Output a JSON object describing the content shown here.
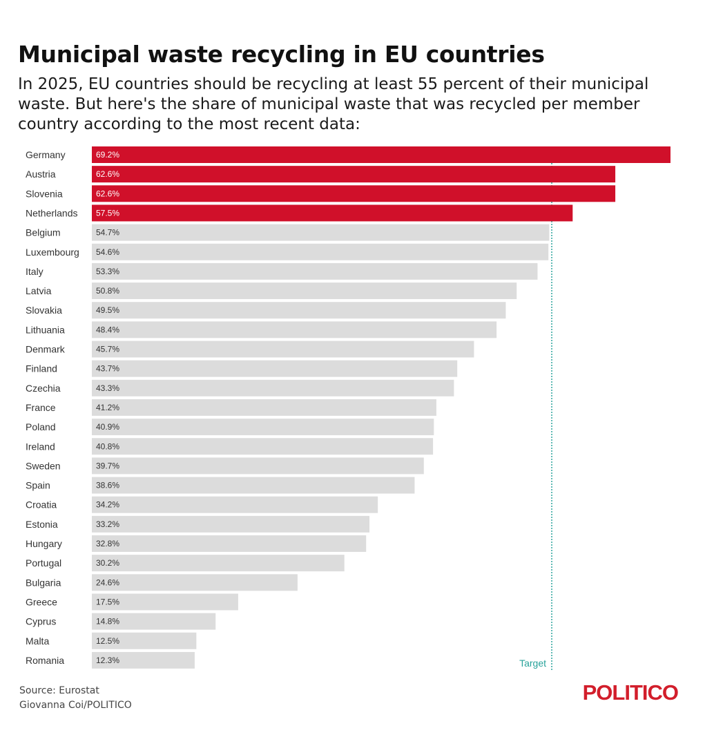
{
  "title": "Municipal waste recycling in EU countries",
  "subtitle": "In 2025, EU countries should be recycling at least 55 percent of their municipal waste. But here's the share of municipal waste that was recycled per member country according to the most recent data:",
  "chart_data": {
    "type": "bar",
    "orientation": "horizontal",
    "categories": [
      "Germany",
      "Austria",
      "Slovenia",
      "Netherlands",
      "Belgium",
      "Luxembourg",
      "Italy",
      "Latvia",
      "Slovakia",
      "Lithuania",
      "Denmark",
      "Finland",
      "Czechia",
      "France",
      "Poland",
      "Ireland",
      "Sweden",
      "Spain",
      "Croatia",
      "Estonia",
      "Hungary",
      "Portugal",
      "Bulgaria",
      "Greece",
      "Cyprus",
      "Malta",
      "Romania"
    ],
    "values": [
      69.2,
      62.6,
      62.6,
      57.5,
      54.7,
      54.6,
      53.3,
      50.8,
      49.5,
      48.4,
      45.7,
      43.7,
      43.3,
      41.2,
      40.9,
      40.8,
      39.7,
      38.6,
      34.2,
      33.2,
      32.8,
      30.2,
      24.6,
      17.5,
      14.8,
      12.5,
      12.3
    ],
    "value_labels": [
      "69.2%",
      "62.6%",
      "62.6%",
      "57.5%",
      "54.7%",
      "54.6%",
      "53.3%",
      "50.8%",
      "49.5%",
      "48.4%",
      "45.7%",
      "43.7%",
      "43.3%",
      "41.2%",
      "40.9%",
      "40.8%",
      "39.7%",
      "38.6%",
      "34.2%",
      "33.2%",
      "32.8%",
      "30.2%",
      "24.6%",
      "17.5%",
      "14.8%",
      "12.5%",
      "12.3%"
    ],
    "xlim": [
      0,
      69.2
    ],
    "target": {
      "value": 55,
      "label": "Target"
    },
    "grid": false,
    "colors": {
      "above_target": "#d0102a",
      "below_target": "#dcdcdc",
      "target_line": "#27a29a"
    }
  },
  "footer": {
    "source": "Source: Eurostat",
    "credit": "Giovanna Coi/POLITICO",
    "logo": "POLITICO"
  }
}
